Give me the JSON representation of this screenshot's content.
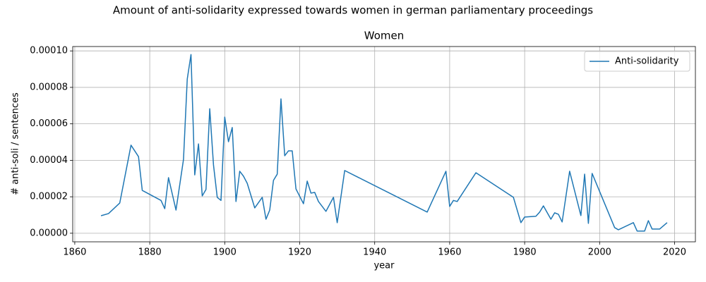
{
  "chart_data": {
    "type": "line",
    "title": "Amount of anti-solidarity expressed towards women in german parliamentary proceedings",
    "subtitle": "Women",
    "xlabel": "year",
    "ylabel": "# anti-soli / sentences",
    "x": [
      1867,
      1869,
      1872,
      1875,
      1877,
      1878,
      1883,
      1884,
      1885,
      1887,
      1889,
      1890,
      1891,
      1892,
      1893,
      1894,
      1895,
      1896,
      1897,
      1898,
      1899,
      1900,
      1901,
      1902,
      1903,
      1904,
      1905,
      1906,
      1908,
      1910,
      1911,
      1912,
      1913,
      1914,
      1915,
      1916,
      1917,
      1918,
      1919,
      1921,
      1922,
      1923,
      1924,
      1925,
      1927,
      1929,
      1930,
      1932,
      1954,
      1959,
      1960,
      1961,
      1962,
      1967,
      1977,
      1979,
      1980,
      1983,
      1984,
      1985,
      1987,
      1988,
      1989,
      1990,
      1992,
      1995,
      1996,
      1997,
      1998,
      2004,
      2005,
      2009,
      2010,
      2012,
      2013,
      2014,
      2016,
      2018
    ],
    "series": [
      {
        "name": "Anti-solidarity",
        "color": "#1f77b4",
        "values": [
          9.6e-06,
          1.08e-05,
          1.66e-05,
          4.83e-05,
          4.2e-05,
          2.35e-05,
          1.8e-05,
          1.35e-05,
          3.05e-05,
          1.27e-05,
          4.05e-05,
          8.45e-05,
          9.8e-05,
          3.2e-05,
          4.9e-05,
          2.05e-05,
          2.4e-05,
          6.83e-05,
          3.75e-05,
          1.97e-05,
          1.8e-05,
          6.37e-05,
          5.02e-05,
          5.8e-05,
          1.74e-05,
          3.4e-05,
          3.13e-05,
          2.74e-05,
          1.39e-05,
          1.97e-05,
          7.7e-06,
          1.27e-05,
          2.9e-05,
          3.24e-05,
          7.37e-05,
          4.25e-05,
          4.52e-05,
          4.52e-05,
          2.43e-05,
          1.62e-05,
          2.86e-05,
          2.2e-05,
          2.24e-05,
          1.74e-05,
          1.2e-05,
          1.97e-05,
          5.8e-06,
          3.44e-05,
          1.16e-05,
          3.4e-05,
          1.47e-05,
          1.8e-05,
          1.74e-05,
          3.32e-05,
          1.97e-05,
          5.8e-06,
          8.9e-06,
          9.3e-06,
          1.16e-05,
          1.5e-05,
          7.7e-06,
          1.12e-05,
          1.04e-05,
          6.2e-06,
          3.4e-05,
          9.7e-06,
          3.24e-05,
          5.4e-06,
          3.28e-05,
          3.1e-06,
          1.9e-06,
          5.8e-06,
          1.2e-06,
          1.2e-06,
          6.9e-06,
          2.3e-06,
          2.3e-06,
          5.8e-06
        ]
      }
    ],
    "xlim": [
      1859.45,
      2025.55
    ],
    "xticks": [
      1860,
      1880,
      1900,
      1920,
      1940,
      1960,
      1980,
      2000,
      2020
    ],
    "ylim": [
      -4.7e-06,
      0.0001024
    ],
    "yticks": [
      {
        "value": 0,
        "label": "0.00000"
      },
      {
        "value": 2e-05,
        "label": "0.00002"
      },
      {
        "value": 4e-05,
        "label": "0.00004"
      },
      {
        "value": 6e-05,
        "label": "0.00006"
      },
      {
        "value": 8e-05,
        "label": "0.00008"
      },
      {
        "value": 0.0001,
        "label": "0.00010"
      }
    ],
    "grid": true,
    "legend": "upper-right"
  }
}
